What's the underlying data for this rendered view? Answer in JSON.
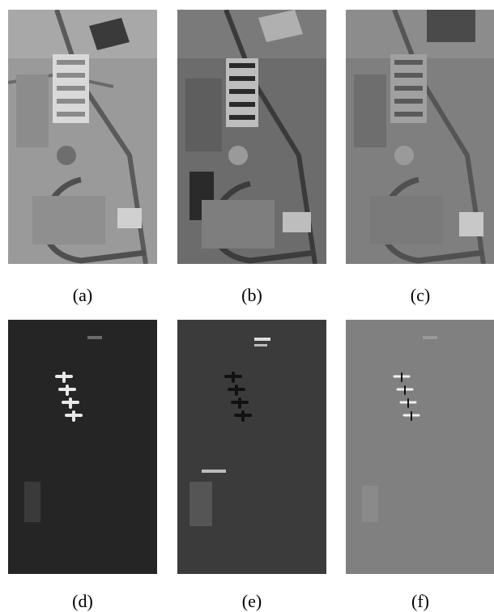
{
  "panels": [
    {
      "label": "(a)",
      "tone": "bright-gray"
    },
    {
      "label": "(b)",
      "tone": "dark-gray"
    },
    {
      "label": "(c)",
      "tone": "medium-gray"
    },
    {
      "label": "(d)",
      "tone": "near-black"
    },
    {
      "label": "(e)",
      "tone": "dark-charcoal"
    },
    {
      "label": "(f)",
      "tone": "flat-gray"
    }
  ],
  "colors": {
    "background": "#ffffff",
    "caption": "#000000"
  }
}
